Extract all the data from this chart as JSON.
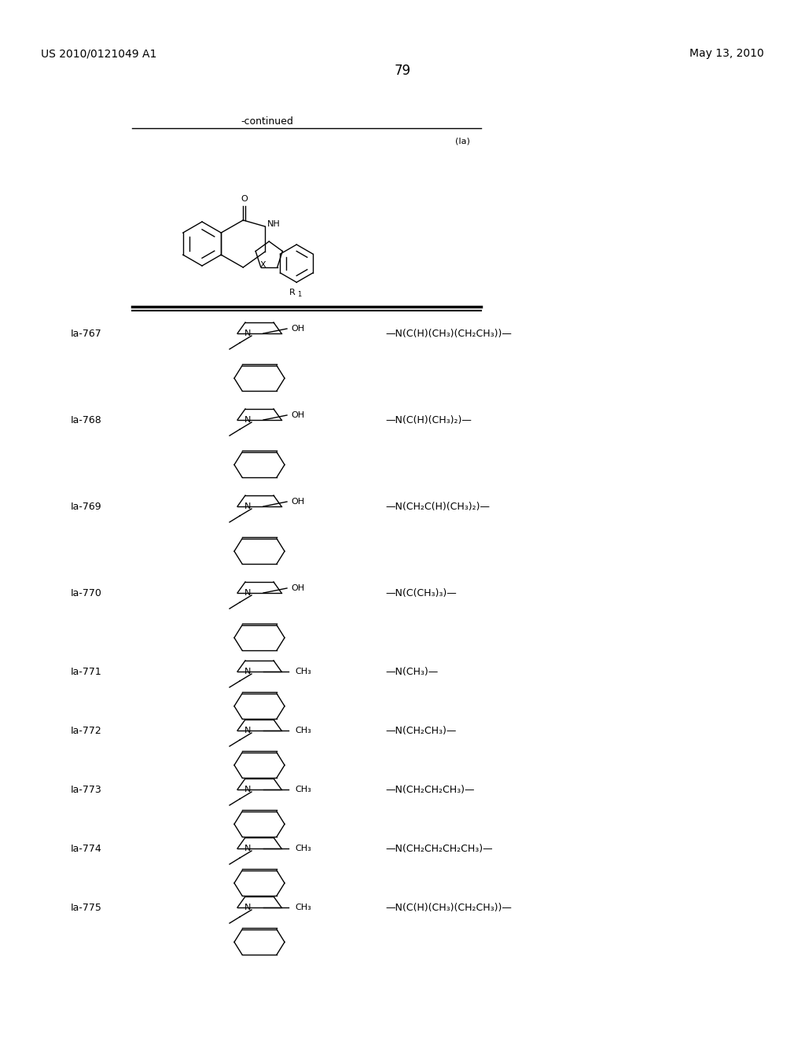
{
  "page_header_left": "US 2010/0121049 A1",
  "page_header_right": "May 13, 2010",
  "page_number": "79",
  "continued_text": "-continued",
  "label_ia": "(Ia)",
  "table_rows": [
    {
      "id": "Ia-767",
      "r_group": "—N(C(H)(CH₃)(CH₂CH₃))—",
      "struct_type": "piperidine_oh"
    },
    {
      "id": "Ia-768",
      "r_group": "—N(C(H)(CH₃)₂)—",
      "struct_type": "piperidine_oh"
    },
    {
      "id": "Ia-769",
      "r_group": "—N(CH₂C(H)(CH₃)₂)—",
      "struct_type": "piperidine_oh"
    },
    {
      "id": "Ia-770",
      "r_group": "—N(C(CH₃)₃)—",
      "struct_type": "piperidine_oh"
    },
    {
      "id": "Ia-771",
      "r_group": "—N(CH₃)—",
      "struct_type": "piperidine_me"
    },
    {
      "id": "Ia-772",
      "r_group": "—N(CH₂CH₃)—",
      "struct_type": "piperidine_me"
    },
    {
      "id": "Ia-773",
      "r_group": "—N(CH₂CH₂CH₃)—",
      "struct_type": "piperidine_me"
    },
    {
      "id": "Ia-774",
      "r_group": "—N(CH₂CH₂CH₂CH₃)—",
      "struct_type": "piperidine_me"
    },
    {
      "id": "Ia-775",
      "r_group": "—N(C(H)(CH₃)(CH₂CH₃))—",
      "struct_type": "piperidine_me"
    }
  ],
  "bg_color": "#ffffff",
  "text_color": "#000000",
  "line_color": "#000000",
  "font_size_header": 10,
  "font_size_label": 9,
  "font_size_page": 10,
  "font_size_id": 9,
  "font_size_rgroup": 9
}
